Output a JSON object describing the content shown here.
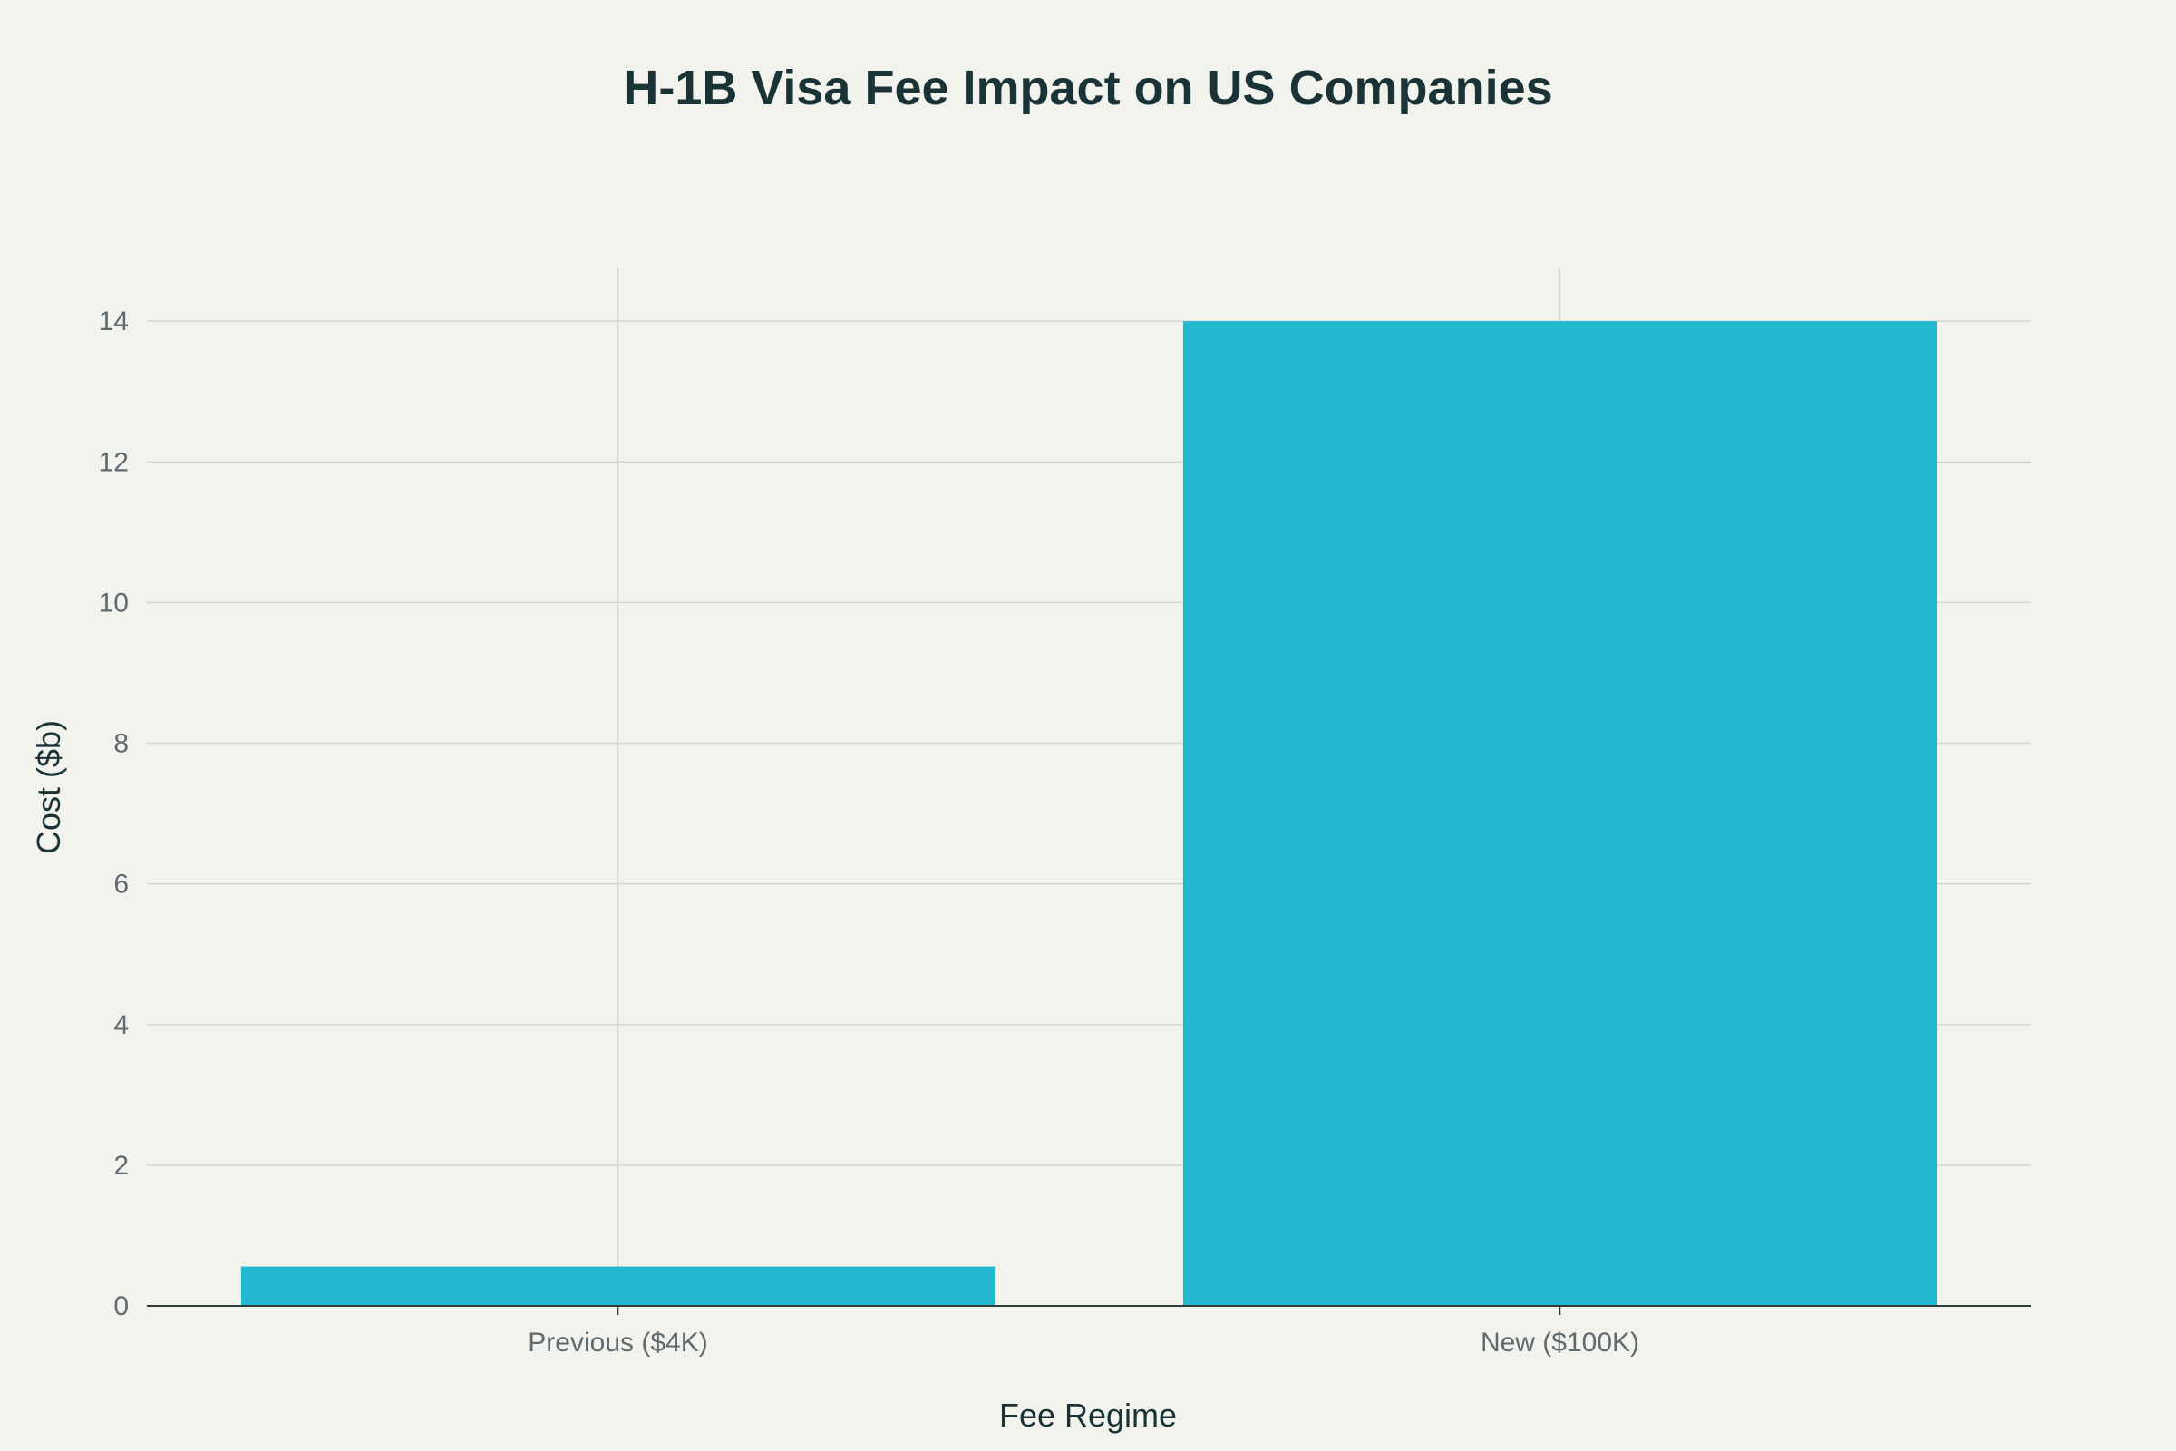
{
  "chart_data": {
    "type": "bar",
    "title": "H-1B Visa Fee Impact on US Companies",
    "xlabel": "Fee Regime",
    "ylabel": "Cost ($b)",
    "categories": [
      "Previous ($4K)",
      "New ($100K)"
    ],
    "values": [
      0.56,
      14
    ],
    "ylim": [
      0,
      14.75
    ],
    "yticks": [
      0,
      2,
      4,
      6,
      8,
      10,
      12,
      14
    ],
    "grid": true,
    "legend": "none",
    "bar_color": "#22b8cf"
  }
}
